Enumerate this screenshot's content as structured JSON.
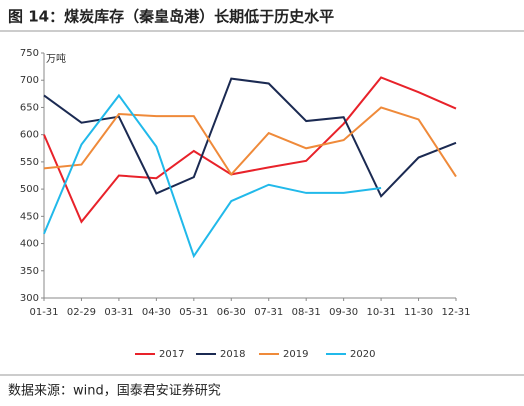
{
  "chart_data": {
    "type": "line",
    "title": "图 14：煤炭库存（秦皇岛港）长期低于历史水平",
    "y_axis_label": "万吨",
    "source": "数据来源：wind，国泰君安证券研究",
    "categories": [
      "01-31",
      "02-29",
      "03-31",
      "04-30",
      "05-31",
      "06-30",
      "07-31",
      "08-31",
      "09-30",
      "10-31",
      "11-30",
      "12-31"
    ],
    "series": [
      {
        "name": "2017",
        "color": "#e8222a",
        "values": [
          600,
          440,
          525,
          520,
          570,
          527,
          540,
          552,
          620,
          705,
          678,
          648
        ]
      },
      {
        "name": "2018",
        "color": "#1b2a52",
        "values": [
          672,
          622,
          633,
          492,
          522,
          703,
          694,
          625,
          632,
          487,
          558,
          585
        ]
      },
      {
        "name": "2019",
        "color": "#ef8a3a",
        "values": [
          538,
          545,
          638,
          634,
          634,
          527,
          603,
          575,
          590,
          650,
          628,
          523
        ]
      },
      {
        "name": "2020",
        "color": "#21b9ea",
        "values": [
          418,
          582,
          672,
          578,
          377,
          478,
          508,
          493,
          493,
          502,
          null,
          null
        ]
      }
    ],
    "ylim": [
      300,
      750
    ],
    "yticks": [
      300,
      350,
      400,
      450,
      500,
      550,
      600,
      650,
      700,
      750
    ],
    "grid": false,
    "legend": "bottom"
  }
}
